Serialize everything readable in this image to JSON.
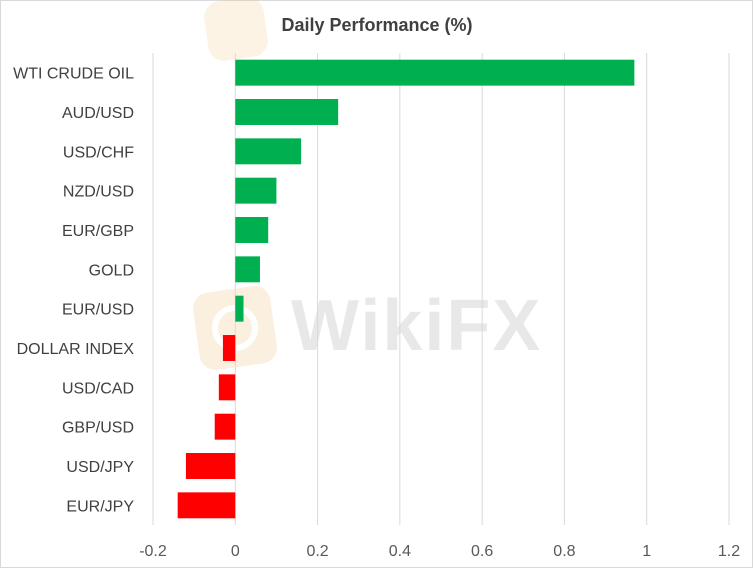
{
  "watermark": {
    "text": "WikiFX"
  },
  "chart_data": {
    "type": "bar",
    "orientation": "horizontal",
    "title": "Daily Performance (%)",
    "xlabel": "",
    "ylabel": "",
    "xlim": [
      -0.2,
      1.2
    ],
    "xticks": [
      -0.2,
      0,
      0.2,
      0.4,
      0.6,
      0.8,
      1,
      1.2
    ],
    "xtick_labels": [
      "-0.2",
      "0",
      "0.2",
      "0.4",
      "0.6",
      "0.8",
      "1",
      "1.2"
    ],
    "grid": "vertical",
    "legend": "none",
    "positive_color": "#00b050",
    "negative_color": "#ff0000",
    "categories": [
      "WTI CRUDE OIL",
      "AUD/USD",
      "USD/CHF",
      "NZD/USD",
      "EUR/GBP",
      "GOLD",
      "EUR/USD",
      "DOLLAR INDEX",
      "USD/CAD",
      "GBP/USD",
      "USD/JPY",
      "EUR/JPY"
    ],
    "values": [
      0.97,
      0.25,
      0.16,
      0.1,
      0.08,
      0.06,
      0.02,
      -0.03,
      -0.04,
      -0.05,
      -0.12,
      -0.14
    ]
  }
}
